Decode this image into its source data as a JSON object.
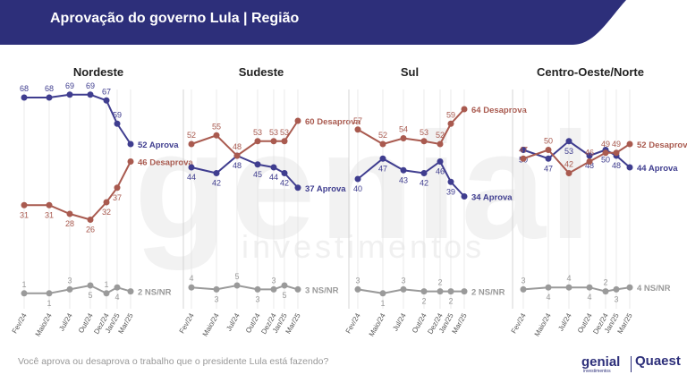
{
  "header": {
    "title": "Aprovação do governo Lula | Região",
    "bg_color": "#2d2f7a"
  },
  "watermark": {
    "main": "genial",
    "sub": "investimentos"
  },
  "footer": {
    "question": "Você aprova ou desaprova o trabalho que o presidente Lula está fazendo?",
    "logo_left": "genial",
    "logo_left_sub": "investimentos",
    "logo_right": "Quaest"
  },
  "colors": {
    "aprova": "#3f3d8f",
    "desaprova": "#a95a4f",
    "nsnr": "#9a9a9a"
  },
  "chart_data": [
    {
      "type": "line",
      "title": "Nordeste",
      "x": [
        "Fev/24",
        "Maio/24",
        "Jul/24",
        "Out/24",
        "Dez/24",
        "Jan/25",
        "Mar/25"
      ],
      "series": [
        {
          "name": "Aprova",
          "values": [
            68,
            68,
            69,
            69,
            67,
            59,
            52
          ],
          "end_label": "52 Aprova"
        },
        {
          "name": "Desaprova",
          "values": [
            31,
            31,
            28,
            26,
            32,
            37,
            46
          ],
          "end_label": "46 Desaprova"
        },
        {
          "name": "NS/NR",
          "values": [
            1,
            1,
            3,
            5,
            1,
            4,
            2
          ],
          "end_label": "2 NS/NR"
        }
      ]
    },
    {
      "type": "line",
      "title": "Sudeste",
      "x": [
        "Fev/24",
        "Maio/24",
        "Jul/24",
        "Out/24",
        "Dez/24",
        "Jan/25",
        "Mar/25"
      ],
      "series": [
        {
          "name": "Aprova",
          "values": [
            44,
            42,
            48,
            45,
            44,
            42,
            37
          ],
          "end_label": "37 Aprova"
        },
        {
          "name": "Desaprova",
          "values": [
            52,
            55,
            48,
            53,
            53,
            53,
            60
          ],
          "end_label": "60 Desaprova"
        },
        {
          "name": "NS/NR",
          "values": [
            4,
            3,
            5,
            3,
            3,
            5,
            3
          ],
          "end_label": "3 NS/NR"
        }
      ]
    },
    {
      "type": "line",
      "title": "Sul",
      "x": [
        "Fev/24",
        "Maio/24",
        "Jul/24",
        "Out/24",
        "Dez/24",
        "Jan/25",
        "Mar/25"
      ],
      "series": [
        {
          "name": "Aprova",
          "values": [
            40,
            47,
            43,
            42,
            46,
            39,
            34
          ],
          "end_label": "34 Aprova"
        },
        {
          "name": "Desaprova",
          "values": [
            57,
            52,
            54,
            53,
            52,
            59,
            64
          ],
          "end_label": "64 Desaprova"
        },
        {
          "name": "NS/NR",
          "values": [
            3,
            1,
            3,
            2,
            2,
            2,
            2
          ],
          "end_label": "2 NS/NR"
        }
      ]
    },
    {
      "type": "line",
      "title": "Centro-Oeste/Norte",
      "x": [
        "Fev/24",
        "Maio/24",
        "Jul/24",
        "Out/24",
        "Dez/24",
        "Jan/25",
        "Mar/25"
      ],
      "series": [
        {
          "name": "Aprova",
          "values": [
            50,
            47,
            53,
            48,
            50,
            48,
            44
          ],
          "end_label": "44 Aprova"
        },
        {
          "name": "Desaprova",
          "values": [
            47,
            50,
            42,
            46,
            49,
            49,
            52
          ],
          "end_label": "52 Desaprova"
        },
        {
          "name": "NS/NR",
          "values": [
            3,
            4,
            4,
            4,
            2,
            3,
            4
          ],
          "end_label": "4 NS/NR"
        }
      ]
    }
  ]
}
